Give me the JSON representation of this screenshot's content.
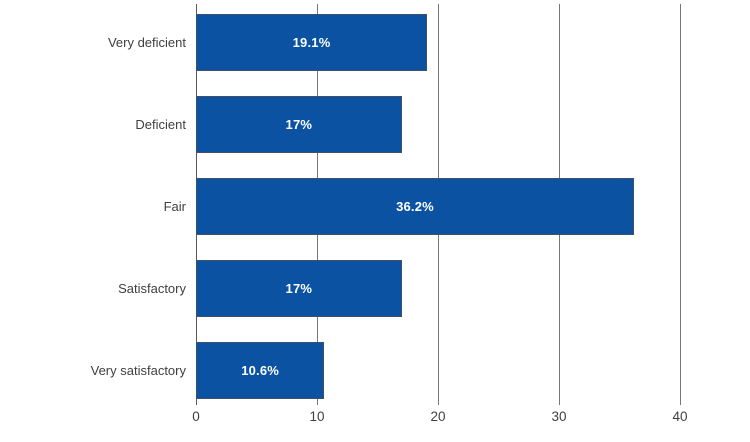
{
  "chart_data": {
    "type": "bar",
    "orientation": "horizontal",
    "title": "",
    "xlabel": "",
    "ylabel": "",
    "categories": [
      "Very deficient",
      "Deficient",
      "Fair",
      "Satisfactory",
      "Very satisfactory"
    ],
    "values": [
      19.1,
      17,
      36.2,
      17,
      10.6
    ],
    "value_labels": [
      "19.1%",
      "17%",
      "36.2%",
      "17%",
      "10.6%"
    ],
    "xticks": [
      0,
      10,
      20,
      30,
      40
    ],
    "xlim": [
      0,
      40
    ],
    "grid": "vertical-gridlines-full-height",
    "legend": "none",
    "colors": {
      "bar_fill": "#0b53a2",
      "bar_border": "#3f5068",
      "value_text": "#ffffff",
      "gridline": "#767676",
      "axis_line": "#595959",
      "label_text": "#3f3f3f",
      "background": "#ffffff"
    }
  }
}
